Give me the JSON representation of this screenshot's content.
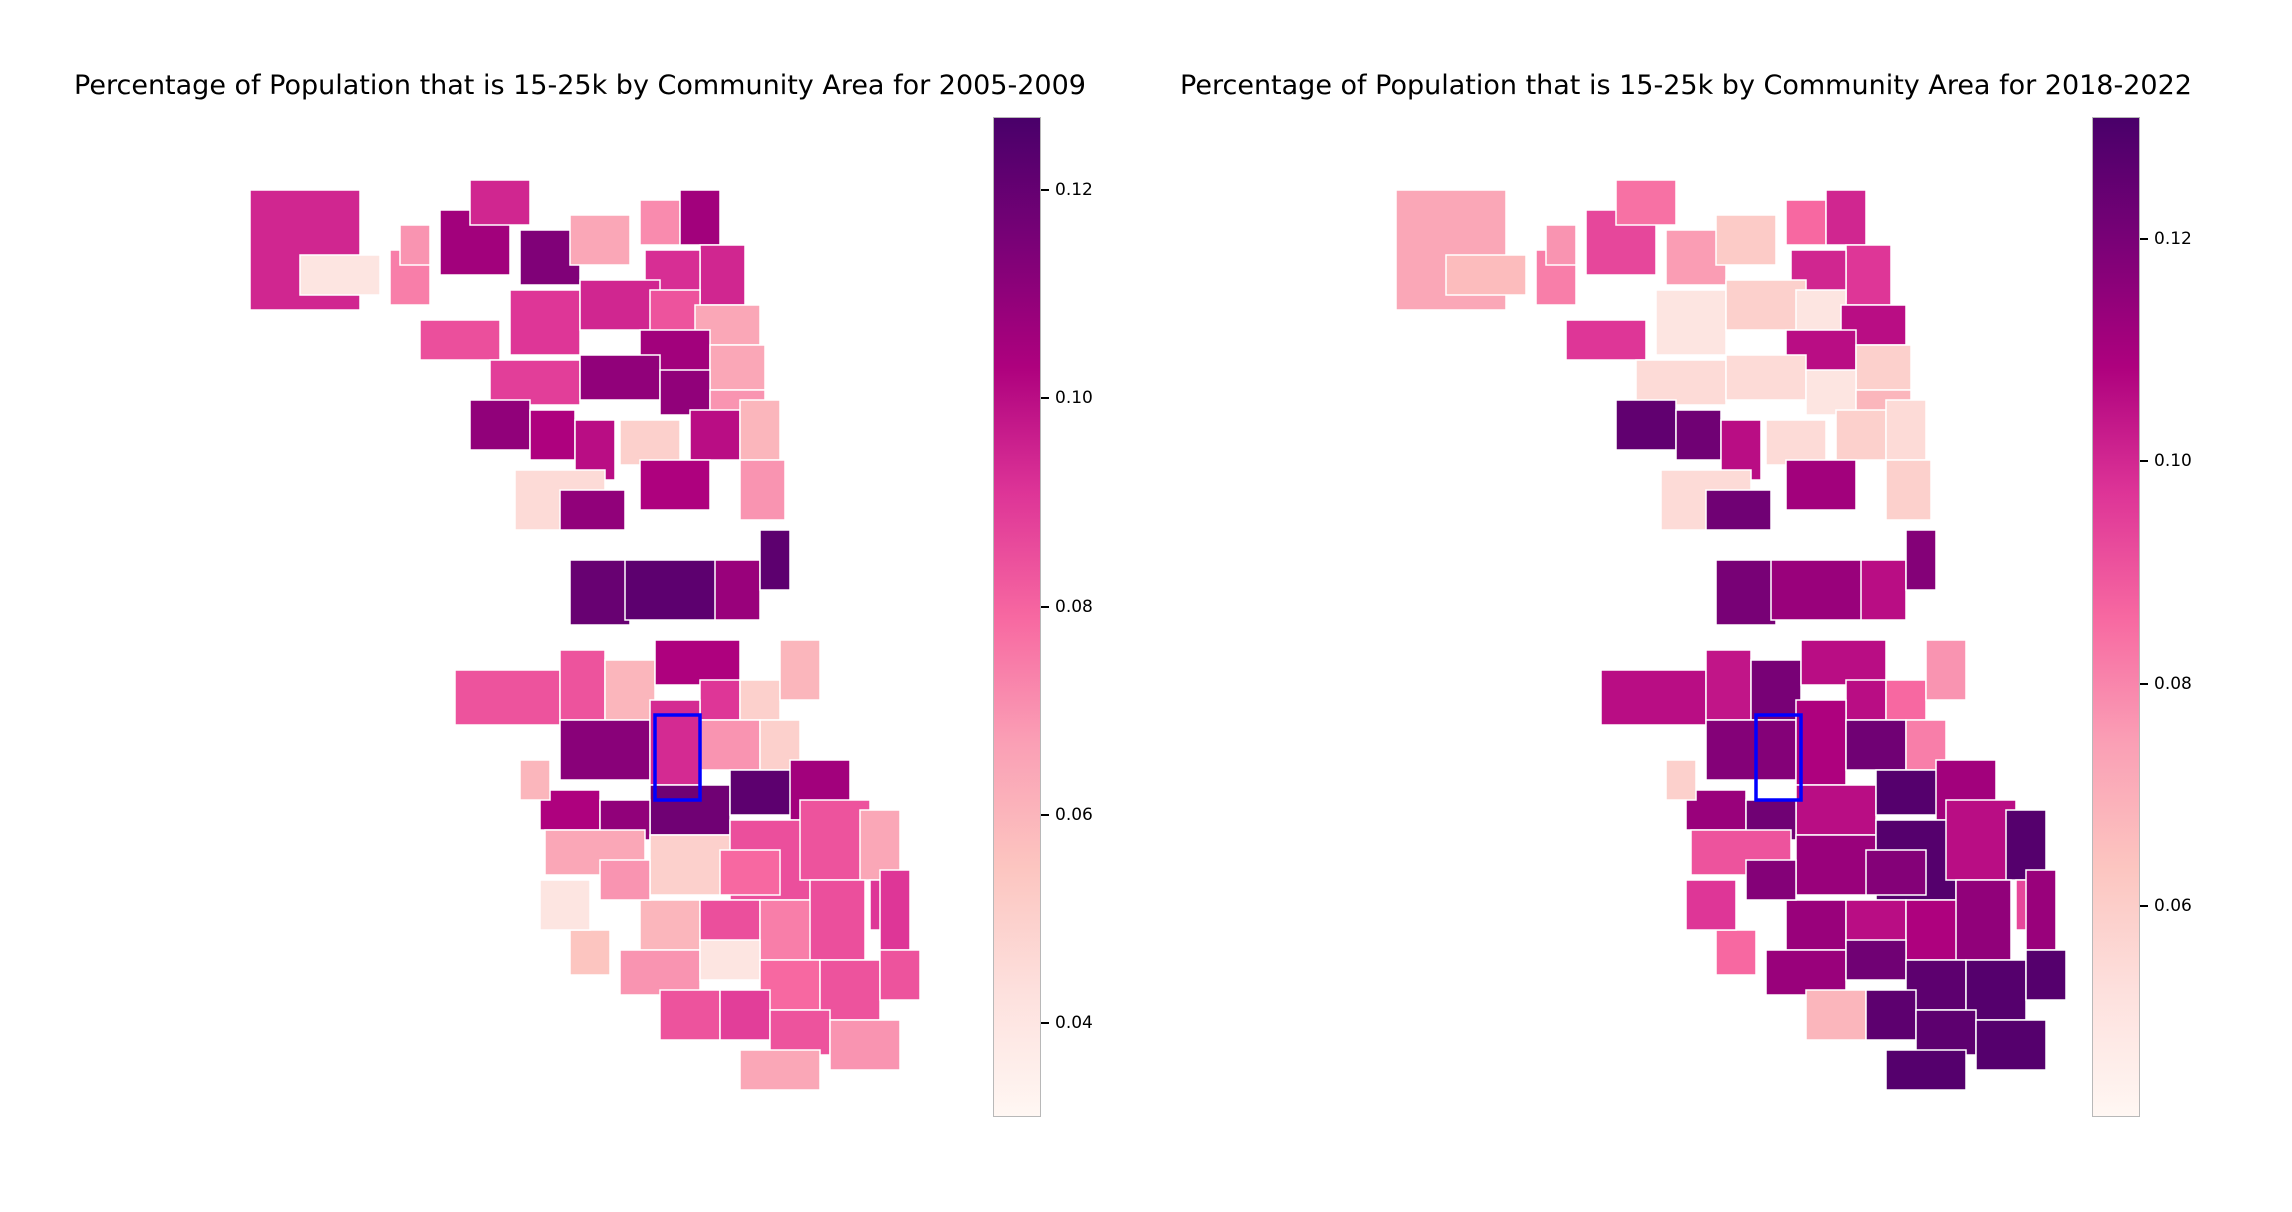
{
  "maps": [
    {
      "id": "left",
      "title": "Percentage of Population that is 15-25k by Community Area for 2005-2009",
      "colorbar": {
        "min": 0.031,
        "max": 0.127,
        "ticks": [
          "0.04",
          "0.06",
          "0.08",
          "0.10",
          "0.12"
        ],
        "tick_values": [
          0.04,
          0.06,
          0.08,
          0.1,
          0.12
        ]
      }
    },
    {
      "id": "right",
      "title": "Percentage of Population that is 15-25k by Community Area for 2018-2022",
      "colorbar": {
        "min": 0.041,
        "max": 0.131,
        "ticks": [
          "0.06",
          "0.08",
          "0.10",
          "0.12"
        ],
        "tick_values": [
          0.06,
          0.08,
          0.1,
          0.12
        ]
      }
    }
  ],
  "colormap": "RdPu",
  "highlight_color": "#0000ff"
}
